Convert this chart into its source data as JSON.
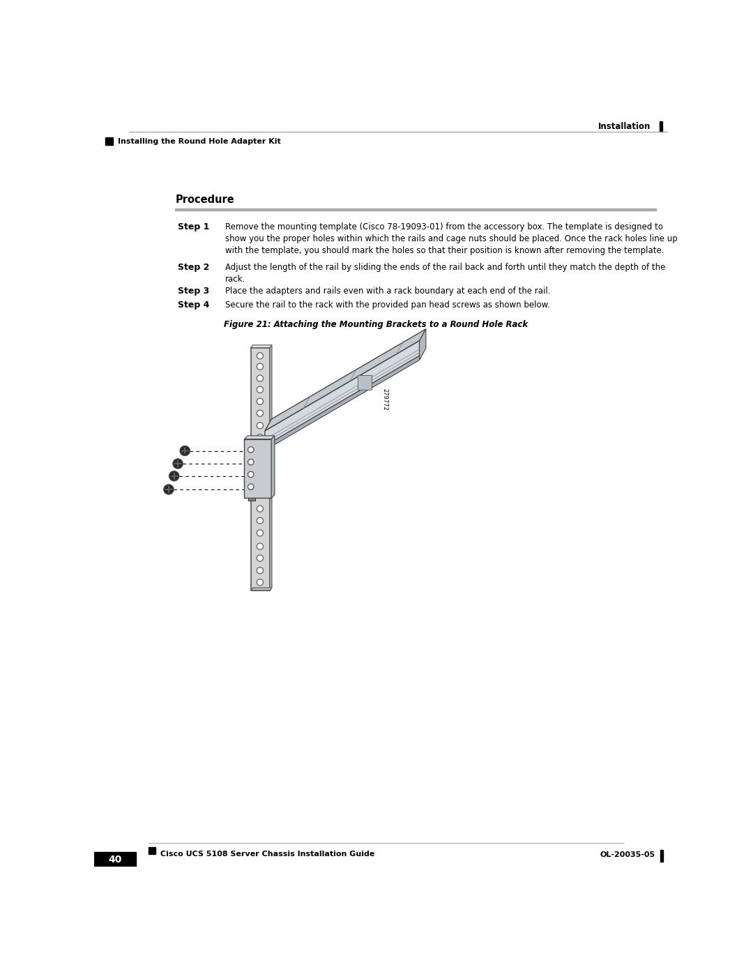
{
  "page_title_right": "Installation",
  "page_subtitle_left": "Installing the Round Hole Adapter Kit",
  "procedure_heading": "Procedure",
  "steps": [
    {
      "label": "Step 1",
      "text": "Remove the mounting template (Cisco 78-19093-01) from the accessory box. The template is designed to\nshow you the proper holes within which the rails and cage nuts should be placed. Once the rack holes line up\nwith the template, you should mark the holes so that their position is known after removing the template."
    },
    {
      "label": "Step 2",
      "text": "Adjust the length of the rail by sliding the ends of the rail back and forth until they match the depth of the\nrack."
    },
    {
      "label": "Step 3",
      "text": "Place the adapters and rails even with a rack boundary at each end of the rail."
    },
    {
      "label": "Step 4",
      "text": "Secure the rail to the rack with the provided pan head screws as shown below."
    }
  ],
  "figure_caption": "Figure 21: Attaching the Mounting Brackets to a Round Hole Rack",
  "footer_left": "Cisco UCS 5108 Server Chassis Installation Guide",
  "footer_right": "OL-20035-05",
  "page_number": "40",
  "bg_color": "#ffffff",
  "text_color": "#000000",
  "header_line_color": "#aaaaaa",
  "diagram_label": "279772",
  "rack_color": "#d8d8d8",
  "rack_edge": "#555555",
  "rail_top_color": "#b0b8c0",
  "rail_main_color": "#c8cdd2",
  "rail_bot_color": "#a8b0b8",
  "bracket_color": "#c0c4c8",
  "screw_color": "#303030"
}
